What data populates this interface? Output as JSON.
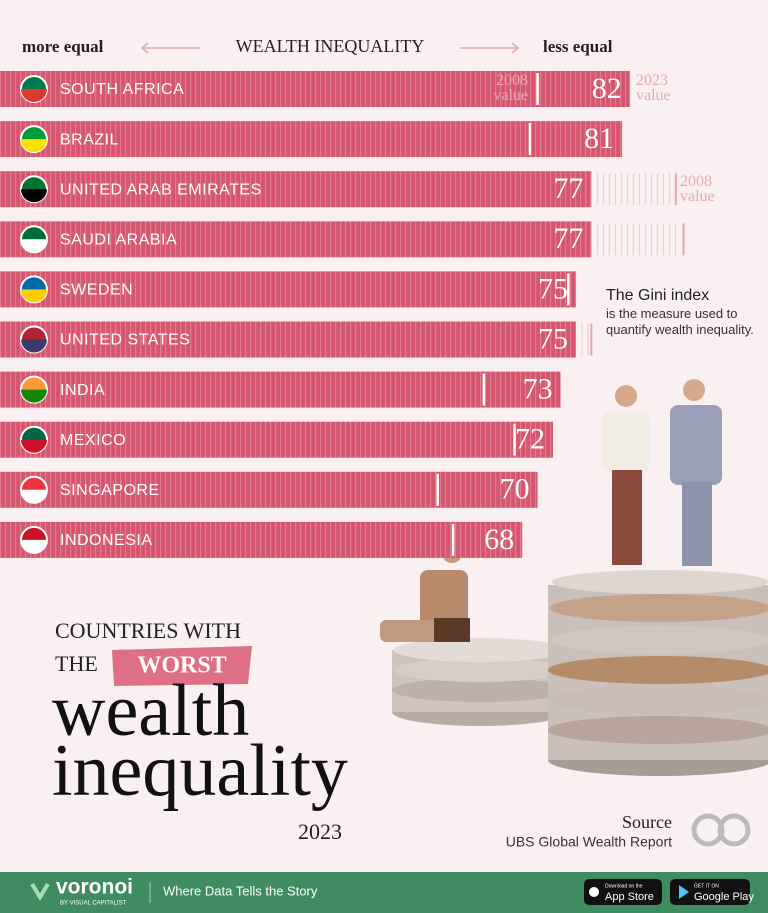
{
  "chart_data": {
    "type": "bar",
    "orientation": "horizontal",
    "title": "WEALTH INEQUALITY",
    "categories": [
      "SOUTH AFRICA",
      "BRAZIL",
      "UNITED ARAB EMIRATES",
      "SAUDI ARABIA",
      "SWEDEN",
      "UNITED STATES",
      "INDIA",
      "MEXICO",
      "SINGAPORE",
      "INDONESIA"
    ],
    "series": [
      {
        "name": "2023 value",
        "color": "#d6566f",
        "values": [
          82,
          81,
          77,
          77,
          75,
          75,
          73,
          72,
          70,
          68
        ]
      },
      {
        "name": "2008 value",
        "color": "#ffffff",
        "values": [
          70,
          69,
          88,
          89,
          74,
          77,
          63,
          67,
          57,
          59
        ]
      }
    ],
    "xlim": [
      0,
      100
    ]
  },
  "axis_labels": {
    "left": "more equal",
    "right": "less equal"
  },
  "note": {
    "title": "The Gini index",
    "text": "is the measure used to quantify wealth inequality."
  },
  "headline": {
    "line1": "COUNTRIES WITH",
    "the": "THE",
    "worst": "WORST",
    "line3": "wealth",
    "line4": "inequality",
    "year": "2023"
  },
  "source": {
    "label": "Source",
    "text": "UBS Global Wealth Report"
  },
  "footer": {
    "brand": "voronoi",
    "byline": "BY VISUAL CAPITALIST",
    "tagline": "Where Data Tells the Story",
    "apple_small": "Download on the",
    "apple": "App Store",
    "google_small": "GET IT ON",
    "google": "Google Play"
  }
}
